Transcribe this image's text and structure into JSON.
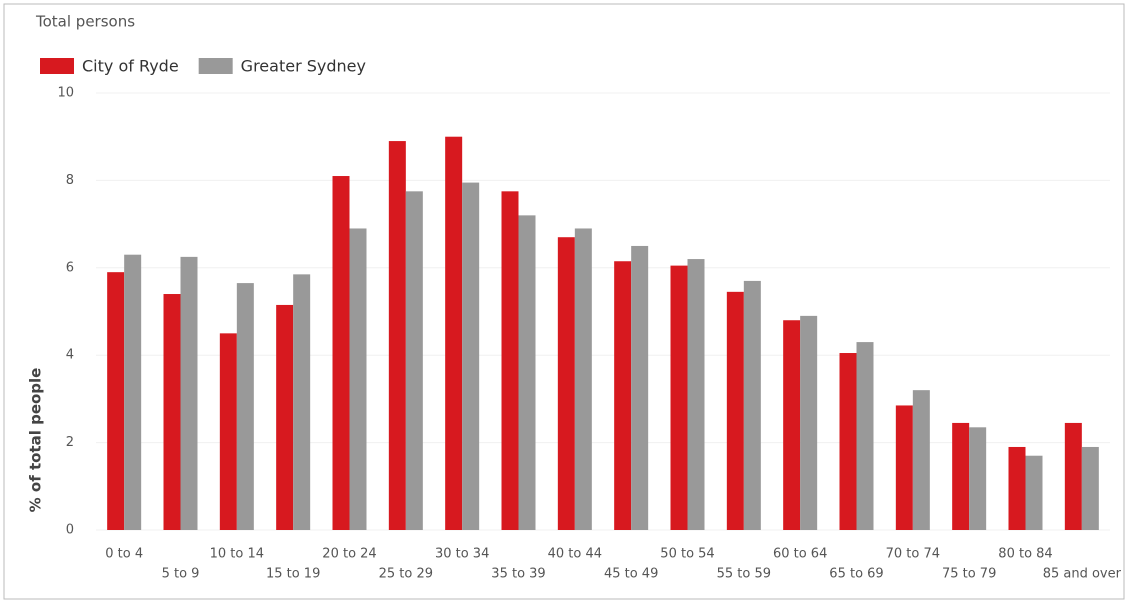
{
  "chart_data": {
    "type": "bar",
    "title": "Total persons",
    "y_label": "% of total people",
    "categories": [
      "0 to 4",
      "5 to 9",
      "10 to 14",
      "15 to 19",
      "20 to 24",
      "25 to 29",
      "30 to 34",
      "35 to 39",
      "40 to 44",
      "45 to 49",
      "50 to 54",
      "55 to 59",
      "60 to 64",
      "65 to 69",
      "70 to 74",
      "75 to 79",
      "80 to 84",
      "85 and over"
    ],
    "series": [
      {
        "name": "City of Ryde",
        "color": "#d7191f",
        "values": [
          5.9,
          5.4,
          4.5,
          5.15,
          8.1,
          8.9,
          9.0,
          7.75,
          6.7,
          6.15,
          6.05,
          5.45,
          4.8,
          4.05,
          2.85,
          2.45,
          1.9,
          2.45
        ]
      },
      {
        "name": "Greater Sydney",
        "color": "#999999",
        "values": [
          6.3,
          6.25,
          5.65,
          5.85,
          6.9,
          7.75,
          7.95,
          7.2,
          6.9,
          6.5,
          6.2,
          5.7,
          4.9,
          4.3,
          3.2,
          2.35,
          1.7,
          1.9
        ]
      }
    ],
    "ylim": [
      0,
      10
    ],
    "yticks": [
      0,
      2,
      4,
      6,
      8,
      10
    ],
    "grid": true
  }
}
